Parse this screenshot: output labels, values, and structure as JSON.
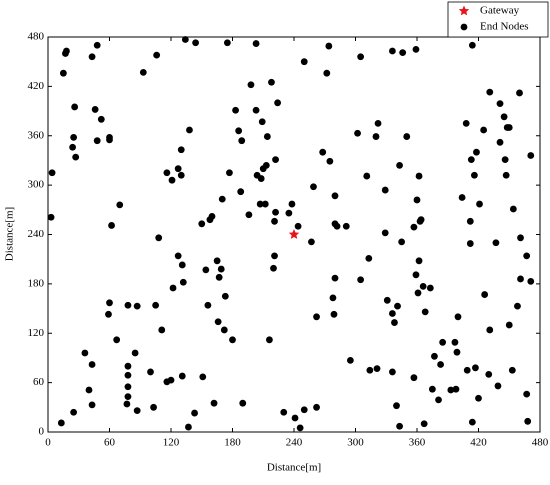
{
  "chart_data": {
    "type": "scatter",
    "x_label": "Distance[m]",
    "y_label": "Distance[m]",
    "xlim": [
      0,
      480
    ],
    "ylim": [
      0,
      480
    ],
    "xticks": [
      0,
      60,
      120,
      180,
      240,
      300,
      360,
      420,
      480
    ],
    "yticks": [
      0,
      60,
      120,
      180,
      240,
      300,
      360,
      420,
      480
    ],
    "legend": "top-right",
    "series": [
      {
        "name": "Gateway",
        "color": "#e8141c",
        "marker": "star",
        "x": [
          240
        ],
        "values": [
          240
        ]
      },
      {
        "name": "End Nodes",
        "color": "#000000",
        "marker": "circle",
        "x": [
          17,
          18,
          15,
          48,
          43,
          93,
          106,
          134,
          144,
          175,
          203,
          218,
          198,
          250,
          274,
          272,
          305,
          336,
          346,
          359,
          414,
          431,
          460,
          441,
          26,
          46,
          52,
          25,
          60,
          60,
          24,
          27,
          48,
          138,
          130,
          183,
          186,
          189,
          203,
          209,
          214,
          224,
          268,
          275,
          302,
          322,
          320,
          350,
          343,
          408,
          425,
          418,
          413,
          445,
          448,
          450,
          441,
          446,
          471,
          116,
          121,
          130,
          127,
          177,
          204,
          208,
          210,
          213,
          222,
          4,
          311,
          362,
          416,
          447,
          259,
          329,
          280,
          188,
          170,
          3,
          70,
          62,
          108,
          158,
          160,
          150,
          196,
          207,
          212,
          222,
          221,
          235,
          238,
          244,
          257,
          280,
          282,
          291,
          313,
          329,
          345,
          357,
          363,
          364,
          360,
          362,
          359,
          361,
          366,
          373,
          404,
          421,
          412,
          454,
          461,
          467,
          461,
          471,
          412,
          437,
          127,
          131,
          154,
          169,
          167,
          165,
          220,
          221,
          280,
          278,
          305,
          122,
          132,
          156,
          173,
          60,
          59,
          78,
          87,
          105,
          111,
          166,
          172,
          180,
          216,
          262,
          279,
          336,
          338,
          331,
          341,
          368,
          400,
          431,
          458,
          450,
          426,
          67,
          36,
          85,
          43,
          78,
          78,
          100,
          116,
          120,
          131,
          151,
          78,
          78,
          77,
          87,
          103,
          40,
          43,
          25,
          13,
          143,
          137,
          162,
          190,
          230,
          241,
          246,
          250,
          262,
          295,
          314,
          321,
          336,
          357,
          375,
          381,
          340,
          343,
          367,
          385,
          377,
          383,
          397,
          399,
          409,
          417,
          430,
          420,
          414,
          439,
          393,
          398,
          467,
          468,
          453
        ],
        "values": [
          460,
          463,
          436,
          470,
          456,
          437,
          458,
          477,
          473,
          473,
          472,
          425,
          422,
          450,
          469,
          436,
          456,
          463,
          461,
          465,
          470,
          413,
          412,
          399,
          395,
          392,
          380,
          358,
          355,
          358,
          346,
          334,
          354,
          367,
          343,
          391,
          366,
          354,
          391,
          377,
          359,
          400,
          340,
          329,
          363,
          375,
          359,
          359,
          324,
          375,
          367,
          340,
          331,
          383,
          370,
          370,
          352,
          331,
          336,
          315,
          306,
          312,
          320,
          315,
          312,
          308,
          320,
          324,
          331,
          315,
          311,
          311,
          312,
          312,
          298,
          294,
          287,
          292,
          283,
          261,
          276,
          251,
          236,
          258,
          262,
          253,
          264,
          277,
          277,
          267,
          256,
          266,
          277,
          250,
          231,
          253,
          250,
          250,
          211,
          242,
          231,
          249,
          256,
          258,
          282,
          208,
          191,
          169,
          177,
          175,
          285,
          277,
          256,
          271,
          236,
          214,
          186,
          183,
          229,
          230,
          214,
          203,
          197,
          198,
          188,
          208,
          199,
          214,
          187,
          163,
          185,
          175,
          182,
          154,
          165,
          157,
          143,
          154,
          153,
          154,
          124,
          134,
          124,
          112,
          112,
          140,
          143,
          144,
          133,
          160,
          153,
          146,
          140,
          124,
          153,
          130,
          167,
          112,
          96,
          96,
          82,
          80,
          69,
          73,
          61,
          63,
          68,
          67,
          55,
          43,
          34,
          26,
          30,
          51,
          33,
          24,
          11,
          23,
          6,
          35,
          35,
          24,
          17,
          5,
          27,
          30,
          87,
          75,
          77,
          73,
          66,
          52,
          39,
          32,
          7,
          10,
          109,
          92,
          82,
          109,
          97,
          75,
          78,
          70,
          41,
          12,
          56,
          51,
          52,
          46,
          13,
          75
        ]
      }
    ]
  }
}
